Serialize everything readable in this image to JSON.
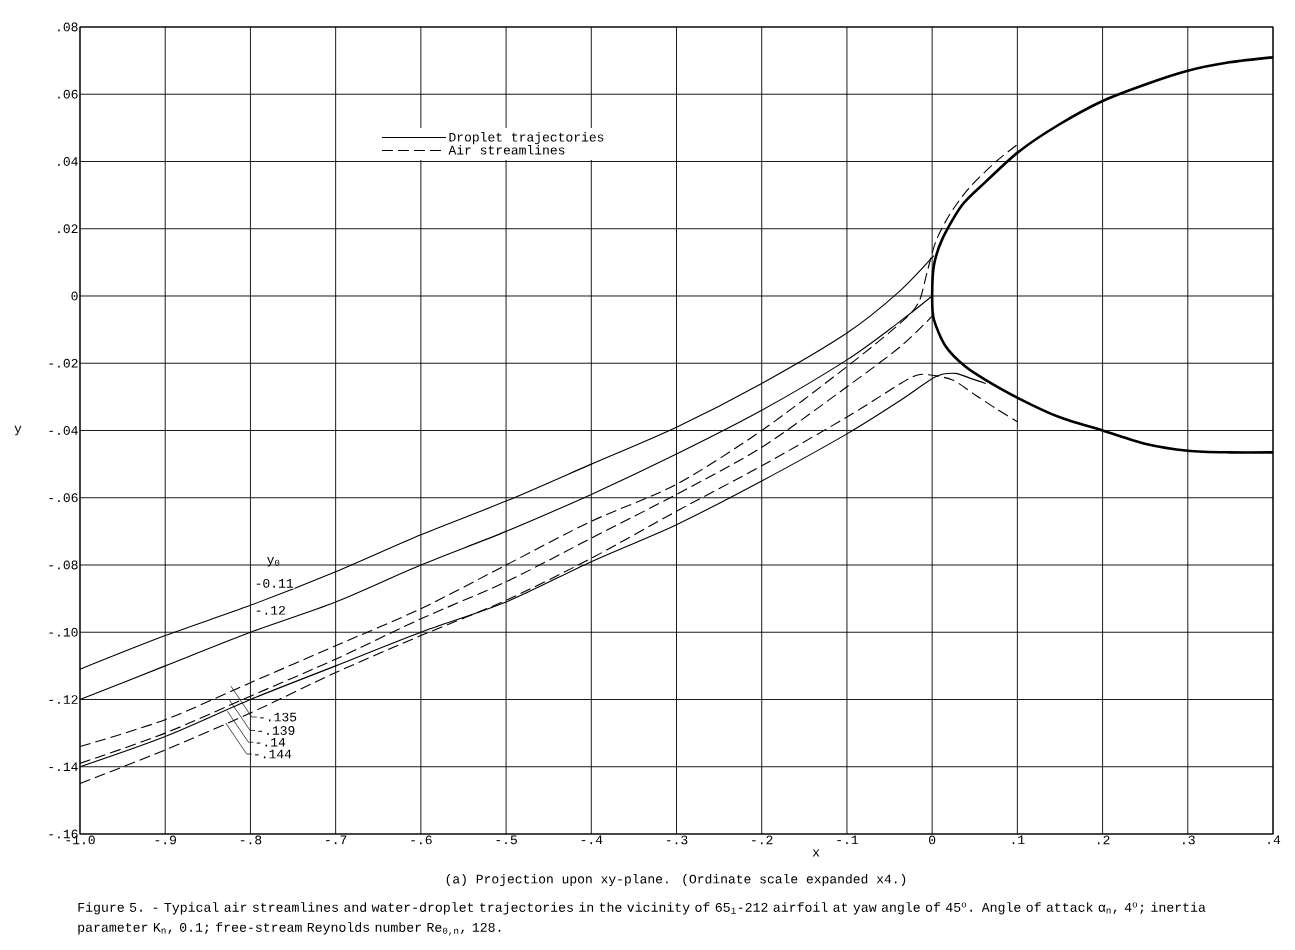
{
  "chart_data": {
    "type": "line",
    "xlabel": "x",
    "ylabel": "y",
    "xlim": [
      -1.0,
      0.4
    ],
    "ylim": [
      -0.16,
      0.08
    ],
    "xticks": [
      {
        "value": -1.0,
        "label": "-1.0"
      },
      {
        "value": -0.9,
        "label": "-.9"
      },
      {
        "value": -0.8,
        "label": "-.8"
      },
      {
        "value": -0.7,
        "label": "-.7"
      },
      {
        "value": -0.6,
        "label": "-.6"
      },
      {
        "value": -0.5,
        "label": "-.5"
      },
      {
        "value": -0.4,
        "label": "-.4"
      },
      {
        "value": -0.3,
        "label": "-.3"
      },
      {
        "value": -0.2,
        "label": "-.2"
      },
      {
        "value": -0.1,
        "label": "-.1"
      },
      0,
      {
        "value": 0.1,
        "label": ".1"
      },
      {
        "value": 0.2,
        "label": ".2"
      },
      {
        "value": 0.3,
        "label": ".3"
      },
      {
        "value": 0.4,
        "label": ".4"
      }
    ],
    "yticks": [
      {
        "value": -0.16,
        "label": "-.16"
      },
      {
        "value": -0.14,
        "label": "-.14"
      },
      {
        "value": -0.12,
        "label": "-.12"
      },
      {
        "value": -0.1,
        "label": "-.10"
      },
      {
        "value": -0.08,
        "label": "-.08"
      },
      {
        "value": -0.06,
        "label": "-.06"
      },
      {
        "value": -0.04,
        "label": "-.04"
      },
      {
        "value": -0.02,
        "label": "-.02"
      },
      0,
      {
        "value": 0.02,
        "label": ".02"
      },
      {
        "value": 0.04,
        "label": ".04"
      },
      {
        "value": 0.06,
        "label": ".06"
      },
      {
        "value": 0.08,
        "label": ".08"
      }
    ],
    "grid": true,
    "legend": "top",
    "series": [
      {
        "name": "Droplet trajectories",
        "color": "#000000",
        "line_style": "solid",
        "x": [
          -1.0,
          -0.9,
          -0.8,
          -0.7,
          -0.6,
          -0.5,
          -0.4,
          -0.3,
          -0.2,
          -0.1,
          -0.04,
          0.002
        ],
        "values": [
          -0.111,
          -0.101,
          -0.092,
          -0.082,
          -0.071,
          -0.061,
          -0.05,
          -0.039,
          -0.026,
          -0.011,
          0.001,
          0.012
        ]
      },
      {
        "color": "#000000",
        "line_style": "solid",
        "x": [
          -1.0,
          -0.9,
          -0.8,
          -0.7,
          -0.6,
          -0.5,
          -0.4,
          -0.3,
          -0.2,
          -0.1,
          -0.04,
          0.0
        ],
        "values": [
          -0.12,
          -0.11,
          -0.1,
          -0.091,
          -0.08,
          -0.07,
          -0.059,
          -0.047,
          -0.034,
          -0.019,
          -0.008,
          0.0
        ]
      },
      {
        "name": "Air streamlines",
        "color": "#000000",
        "line_style": "dashed",
        "x": [
          -1.0,
          -0.9,
          -0.8,
          -0.7,
          -0.6,
          -0.5,
          -0.4,
          -0.3,
          -0.2,
          -0.1,
          -0.037,
          -0.016,
          -0.006,
          0.004,
          0.02,
          0.043,
          0.075,
          0.1
        ],
        "values": [
          -0.134,
          -0.126,
          -0.115,
          -0.104,
          -0.093,
          -0.08,
          -0.067,
          -0.056,
          -0.04,
          -0.021,
          -0.008,
          -0.002,
          0.007,
          0.016,
          0.024,
          0.032,
          0.04,
          0.045
        ]
      },
      {
        "color": "#000000",
        "line_style": "dashed",
        "x": [
          -1.0,
          -0.9,
          -0.8,
          -0.7,
          -0.6,
          -0.5,
          -0.4,
          -0.3,
          -0.2,
          -0.1,
          -0.037,
          0.0
        ],
        "values": [
          -0.139,
          -0.13,
          -0.119,
          -0.108,
          -0.096,
          -0.085,
          -0.072,
          -0.059,
          -0.045,
          -0.027,
          -0.015,
          -0.006
        ]
      },
      {
        "color": "#000000",
        "line_style": "solid",
        "x": [
          -1.0,
          -0.9,
          -0.8,
          -0.7,
          -0.6,
          -0.5,
          -0.4,
          -0.3,
          -0.2,
          -0.1,
          -0.037,
          0.004,
          0.027,
          0.045,
          0.063
        ],
        "values": [
          -0.14,
          -0.131,
          -0.12,
          -0.11,
          -0.1,
          -0.091,
          -0.079,
          -0.068,
          -0.055,
          -0.041,
          -0.031,
          -0.024,
          -0.023,
          -0.0245,
          -0.026
        ]
      },
      {
        "color": "#000000",
        "line_style": "dashed",
        "x": [
          -1.0,
          -0.9,
          -0.8,
          -0.7,
          -0.6,
          -0.5,
          -0.4,
          -0.3,
          -0.2,
          -0.1,
          -0.037,
          -0.018,
          -0.004,
          0.024,
          0.051,
          0.075,
          0.1
        ],
        "values": [
          -0.145,
          -0.135,
          -0.124,
          -0.112,
          -0.101,
          -0.0905,
          -0.078,
          -0.064,
          -0.0505,
          -0.036,
          -0.026,
          -0.0236,
          -0.0234,
          -0.025,
          -0.0295,
          -0.0335,
          -0.0374
        ]
      },
      {
        "color": "#000000",
        "line_style": "solid",
        "x": [
          0.4,
          0.349,
          0.3,
          0.251,
          0.2,
          0.149,
          0.102,
          0.063,
          0.035,
          0.012,
          0.002,
          0.0,
          0.002,
          0.016,
          0.039,
          0.063,
          0.102,
          0.149,
          0.2,
          0.251,
          0.3,
          0.349,
          0.4
        ],
        "values": [
          0.071,
          0.0695,
          0.067,
          0.063,
          0.058,
          0.051,
          0.043,
          0.034,
          0.027,
          0.017,
          0.009,
          0.0,
          -0.007,
          -0.015,
          -0.021,
          -0.025,
          -0.0305,
          -0.036,
          -0.04,
          -0.044,
          -0.046,
          -0.0465,
          -0.0465
        ]
      }
    ],
    "annotations": [
      "y$_{0}$",
      {
        "text": "-0.11",
        "x": -0.8,
        "y": -0.092
      },
      {
        "text": "-.12",
        "x": -0.8,
        "y": -0.1
      },
      {
        "text": "-.135",
        "x": -0.823,
        "y": -0.116
      },
      {
        "text": "-.139",
        "x": -0.825,
        "y": -0.12
      },
      {
        "text": "-.14",
        "x": -0.827,
        "y": -0.1235
      },
      {
        "text": "-.144",
        "x": -0.829,
        "y": -0.127
      },
      "(a) Projection upon xy-plane.  (Ordinate scale expanded x4.)",
      "Figure 5. - Typical air streamlines and water-droplet trajectories in the vicinity of 65$_{1}$-212 airfoil at yaw angle of 45$^{o}$.  Angle of attack α$_{n}$, 4$^{o}$; inertia parameter  K$_{n}$, 0.1; free-stream Reynolds number  Re$_{0,n}$, 128."
    ]
  }
}
